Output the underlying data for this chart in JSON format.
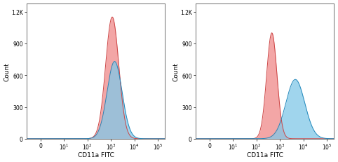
{
  "panel1": {
    "red_peak_log": 3.05,
    "red_peak_height": 1150,
    "red_sigma": 0.28,
    "blue_peak_log": 3.15,
    "blue_peak_height": 730,
    "blue_sigma": 0.32,
    "red_color": "#f08888",
    "blue_color": "#80c8e8",
    "red_line_color": "#cc4444",
    "blue_line_color": "#2288bb"
  },
  "panel2": {
    "red_peak_log": 2.65,
    "red_peak_height": 1000,
    "red_sigma": 0.22,
    "blue_peak_log": 3.65,
    "blue_peak_height": 560,
    "blue_sigma": 0.4,
    "red_color": "#f08888",
    "blue_color": "#80c8e8",
    "red_line_color": "#cc4444",
    "blue_line_color": "#2288bb"
  },
  "xlabel": "CD11a FITC",
  "ylabel": "Count",
  "ylim": [
    0,
    1280
  ],
  "yticks_vals": [
    0,
    300,
    600,
    900,
    1200
  ],
  "ytick_labels": [
    "0",
    "300",
    "600",
    "900",
    "1.2K"
  ],
  "xlim": [
    -0.6,
    5.3
  ],
  "xtick_positions": [
    0,
    1,
    2,
    3,
    4,
    5
  ],
  "xtick_labels": [
    "0",
    "10$^1$",
    "10$^2$",
    "10$^3$",
    "10$^4$",
    "10$^5$"
  ],
  "background_color": "#ffffff",
  "axis_fontsize": 6.5,
  "tick_fontsize": 5.5,
  "red_alpha": 0.75,
  "blue_alpha": 0.75
}
